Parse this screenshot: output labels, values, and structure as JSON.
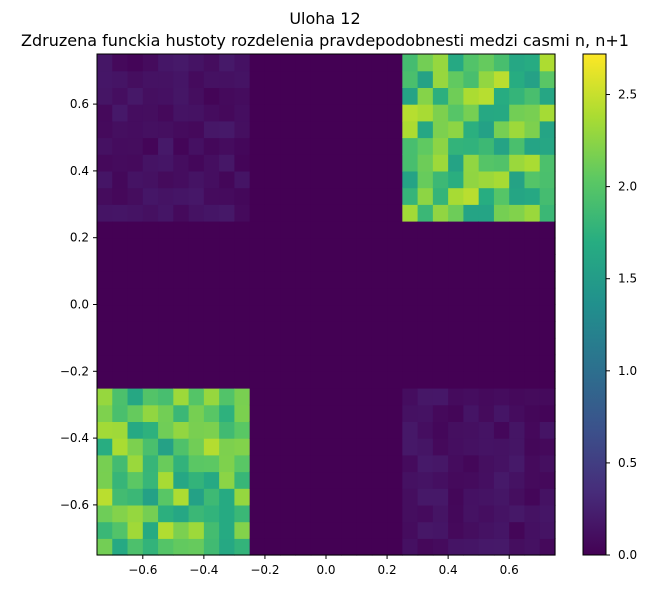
{
  "chart_data": {
    "type": "heatmap",
    "title": "Uloha 12",
    "subtitle": "Zdruzena funckia hustoty rozdelenia pravdepodobnesti medzi casmi n, n+1",
    "xlabel": "",
    "ylabel": "",
    "xlim": [
      -0.75,
      0.75
    ],
    "ylim": [
      -0.75,
      0.75
    ],
    "xticks": [
      -0.6,
      -0.4,
      -0.2,
      0.0,
      0.2,
      0.4,
      0.6
    ],
    "xtick_labels": [
      "−0.6",
      "−0.4",
      "−0.2",
      "0.0",
      "0.2",
      "0.4",
      "0.6"
    ],
    "yticks": [
      -0.6,
      -0.4,
      -0.2,
      0.0,
      0.2,
      0.4,
      0.6
    ],
    "ytick_labels": [
      "−0.6",
      "−0.4",
      "−0.2",
      "0.0",
      "0.2",
      "0.4",
      "0.6"
    ],
    "colormap": "viridis",
    "grid": false,
    "colorbar": {
      "range": [
        0,
        2.72
      ],
      "ticks": [
        0.0,
        0.5,
        1.0,
        1.5,
        2.0,
        2.5
      ],
      "tick_labels": [
        "0.0",
        "0.5",
        "1.0",
        "1.5",
        "2.0",
        "2.5"
      ]
    },
    "bins": 30,
    "regions": [
      {
        "x": [
          -0.75,
          -0.25
        ],
        "y": [
          -0.75,
          -0.25
        ],
        "mean_density": 2.0
      },
      {
        "x": [
          0.25,
          0.75
        ],
        "y": [
          0.25,
          0.75
        ],
        "mean_density": 2.0
      },
      {
        "x": [
          -0.75,
          -0.25
        ],
        "y": [
          0.25,
          0.75
        ],
        "mean_density": 0.1
      },
      {
        "x": [
          0.25,
          0.75
        ],
        "y": [
          -0.75,
          -0.25
        ],
        "mean_density": 0.1
      },
      {
        "x": [
          -0.75,
          0.75
        ],
        "y": [
          -0.25,
          0.25
        ],
        "mean_density": 0.0
      }
    ]
  }
}
